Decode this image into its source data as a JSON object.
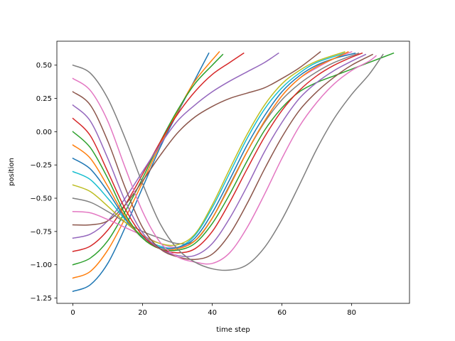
{
  "chart_data": {
    "type": "line",
    "title": "",
    "xlabel": "time step",
    "ylabel": "position",
    "xlim": [
      -4.6,
      96.6
    ],
    "ylim": [
      -1.29,
      0.68
    ],
    "x_ticks": [
      0,
      20,
      40,
      60,
      80
    ],
    "x_tick_labels": [
      "0",
      "20",
      "40",
      "60",
      "80"
    ],
    "y_ticks": [
      -1.25,
      -1.0,
      -0.75,
      -0.5,
      -0.25,
      0.0,
      0.25,
      0.5
    ],
    "y_tick_labels": [
      "−1.25",
      "−1.00",
      "−0.75",
      "−0.50",
      "−0.25",
      "0.00",
      "0.25",
      "0.50"
    ],
    "grid": false,
    "legend": "none",
    "series": [
      {
        "color": "#1f77b4",
        "points": [
          [
            0,
            -1.2
          ],
          [
            5,
            -1.15
          ],
          [
            10,
            -0.99
          ],
          [
            15,
            -0.72
          ],
          [
            20,
            -0.42
          ],
          [
            25,
            -0.12
          ],
          [
            30,
            0.14
          ],
          [
            35,
            0.39
          ],
          [
            39,
            0.59
          ]
        ]
      },
      {
        "color": "#ff7f0e",
        "points": [
          [
            0,
            -1.1
          ],
          [
            5,
            -1.05
          ],
          [
            10,
            -0.89
          ],
          [
            15,
            -0.65
          ],
          [
            20,
            -0.38
          ],
          [
            25,
            -0.1
          ],
          [
            30,
            0.15
          ],
          [
            35,
            0.38
          ],
          [
            42,
            0.6
          ]
        ]
      },
      {
        "color": "#2ca02c",
        "points": [
          [
            0,
            -1.0
          ],
          [
            5,
            -0.95
          ],
          [
            10,
            -0.82
          ],
          [
            15,
            -0.6
          ],
          [
            20,
            -0.35
          ],
          [
            25,
            -0.08
          ],
          [
            30,
            0.16
          ],
          [
            35,
            0.36
          ],
          [
            40,
            0.5
          ],
          [
            43,
            0.58
          ]
        ]
      },
      {
        "color": "#d62728",
        "points": [
          [
            0,
            -0.9
          ],
          [
            5,
            -0.86
          ],
          [
            10,
            -0.74
          ],
          [
            15,
            -0.55
          ],
          [
            20,
            -0.32
          ],
          [
            25,
            -0.08
          ],
          [
            30,
            0.13
          ],
          [
            35,
            0.3
          ],
          [
            40,
            0.43
          ],
          [
            45,
            0.52
          ],
          [
            49,
            0.59
          ]
        ]
      },
      {
        "color": "#9467bd",
        "points": [
          [
            0,
            -0.8
          ],
          [
            5,
            -0.77
          ],
          [
            10,
            -0.67
          ],
          [
            15,
            -0.5
          ],
          [
            20,
            -0.3
          ],
          [
            25,
            -0.1
          ],
          [
            30,
            0.08
          ],
          [
            35,
            0.2
          ],
          [
            40,
            0.3
          ],
          [
            45,
            0.38
          ],
          [
            50,
            0.45
          ],
          [
            55,
            0.52
          ],
          [
            59,
            0.59
          ]
        ]
      },
      {
        "color": "#8c564b",
        "points": [
          [
            0,
            -0.7
          ],
          [
            5,
            -0.7
          ],
          [
            10,
            -0.67
          ],
          [
            15,
            -0.55
          ],
          [
            20,
            -0.37
          ],
          [
            25,
            -0.18
          ],
          [
            30,
            -0.01
          ],
          [
            35,
            0.11
          ],
          [
            40,
            0.19
          ],
          [
            45,
            0.25
          ],
          [
            50,
            0.29
          ],
          [
            55,
            0.33
          ],
          [
            60,
            0.4
          ],
          [
            65,
            0.48
          ],
          [
            71,
            0.6
          ]
        ]
      },
      {
        "color": "#e377c2",
        "points": [
          [
            0,
            -0.6
          ],
          [
            5,
            -0.61
          ],
          [
            10,
            -0.66
          ],
          [
            15,
            -0.72
          ],
          [
            20,
            -0.78
          ],
          [
            25,
            -0.84
          ],
          [
            30,
            -0.87
          ],
          [
            35,
            -0.82
          ],
          [
            40,
            -0.65
          ],
          [
            45,
            -0.4
          ],
          [
            50,
            -0.15
          ],
          [
            55,
            0.08
          ],
          [
            60,
            0.27
          ],
          [
            65,
            0.4
          ],
          [
            70,
            0.48
          ],
          [
            75,
            0.55
          ],
          [
            80,
            0.6
          ]
        ]
      },
      {
        "color": "#7f7f7f",
        "points": [
          [
            0,
            -0.5
          ],
          [
            5,
            -0.53
          ],
          [
            10,
            -0.6
          ],
          [
            15,
            -0.68
          ],
          [
            20,
            -0.75
          ],
          [
            25,
            -0.8
          ],
          [
            30,
            -0.84
          ],
          [
            35,
            -0.82
          ],
          [
            40,
            -0.65
          ],
          [
            45,
            -0.4
          ],
          [
            50,
            -0.15
          ],
          [
            55,
            0.07
          ],
          [
            60,
            0.24
          ],
          [
            65,
            0.36
          ],
          [
            70,
            0.45
          ],
          [
            75,
            0.52
          ],
          [
            82,
            0.59
          ]
        ]
      },
      {
        "color": "#bcbd22",
        "points": [
          [
            0,
            -0.4
          ],
          [
            5,
            -0.45
          ],
          [
            10,
            -0.56
          ],
          [
            15,
            -0.68
          ],
          [
            20,
            -0.78
          ],
          [
            25,
            -0.84
          ],
          [
            30,
            -0.85
          ],
          [
            35,
            -0.77
          ],
          [
            40,
            -0.55
          ],
          [
            45,
            -0.28
          ],
          [
            50,
            -0.02
          ],
          [
            55,
            0.2
          ],
          [
            60,
            0.36
          ],
          [
            65,
            0.46
          ],
          [
            70,
            0.53
          ],
          [
            78,
            0.6
          ]
        ]
      },
      {
        "color": "#17becf",
        "points": [
          [
            0,
            -0.3
          ],
          [
            5,
            -0.36
          ],
          [
            10,
            -0.5
          ],
          [
            15,
            -0.66
          ],
          [
            20,
            -0.79
          ],
          [
            25,
            -0.86
          ],
          [
            30,
            -0.87
          ],
          [
            35,
            -0.78
          ],
          [
            40,
            -0.57
          ],
          [
            45,
            -0.31
          ],
          [
            50,
            -0.05
          ],
          [
            55,
            0.17
          ],
          [
            60,
            0.33
          ],
          [
            65,
            0.44
          ],
          [
            70,
            0.52
          ],
          [
            78,
            0.59
          ]
        ]
      },
      {
        "color": "#1f77b4",
        "points": [
          [
            0,
            -0.2
          ],
          [
            5,
            -0.28
          ],
          [
            10,
            -0.45
          ],
          [
            15,
            -0.65
          ],
          [
            20,
            -0.8
          ],
          [
            25,
            -0.87
          ],
          [
            30,
            -0.87
          ],
          [
            35,
            -0.8
          ],
          [
            40,
            -0.61
          ],
          [
            45,
            -0.36
          ],
          [
            50,
            -0.1
          ],
          [
            55,
            0.12
          ],
          [
            60,
            0.3
          ],
          [
            65,
            0.42
          ],
          [
            70,
            0.5
          ],
          [
            75,
            0.55
          ],
          [
            81,
            0.59
          ]
        ]
      },
      {
        "color": "#ff7f0e",
        "points": [
          [
            0,
            -0.1
          ],
          [
            5,
            -0.2
          ],
          [
            10,
            -0.41
          ],
          [
            15,
            -0.64
          ],
          [
            20,
            -0.8
          ],
          [
            25,
            -0.88
          ],
          [
            30,
            -0.88
          ],
          [
            35,
            -0.82
          ],
          [
            40,
            -0.65
          ],
          [
            45,
            -0.41
          ],
          [
            50,
            -0.15
          ],
          [
            55,
            0.08
          ],
          [
            60,
            0.27
          ],
          [
            65,
            0.4
          ],
          [
            70,
            0.49
          ],
          [
            75,
            0.55
          ],
          [
            79,
            0.6
          ]
        ]
      },
      {
        "color": "#2ca02c",
        "points": [
          [
            0,
            0.0
          ],
          [
            5,
            -0.12
          ],
          [
            10,
            -0.35
          ],
          [
            15,
            -0.62
          ],
          [
            20,
            -0.8
          ],
          [
            25,
            -0.88
          ],
          [
            30,
            -0.89
          ],
          [
            35,
            -0.84
          ],
          [
            40,
            -0.69
          ],
          [
            45,
            -0.47
          ],
          [
            50,
            -0.22
          ],
          [
            55,
            0.01
          ],
          [
            60,
            0.18
          ],
          [
            65,
            0.3
          ],
          [
            70,
            0.37
          ],
          [
            75,
            0.42
          ],
          [
            80,
            0.47
          ],
          [
            85,
            0.52
          ],
          [
            92,
            0.59
          ]
        ]
      },
      {
        "color": "#d62728",
        "points": [
          [
            0,
            0.1
          ],
          [
            5,
            -0.03
          ],
          [
            10,
            -0.3
          ],
          [
            15,
            -0.58
          ],
          [
            20,
            -0.78
          ],
          [
            25,
            -0.88
          ],
          [
            30,
            -0.91
          ],
          [
            35,
            -0.88
          ],
          [
            40,
            -0.75
          ],
          [
            45,
            -0.53
          ],
          [
            50,
            -0.28
          ],
          [
            55,
            -0.04
          ],
          [
            60,
            0.16
          ],
          [
            65,
            0.31
          ],
          [
            70,
            0.42
          ],
          [
            75,
            0.5
          ],
          [
            80,
            0.56
          ],
          [
            83,
            0.59
          ]
        ]
      },
      {
        "color": "#9467bd",
        "points": [
          [
            0,
            0.2
          ],
          [
            5,
            0.08
          ],
          [
            10,
            -0.2
          ],
          [
            15,
            -0.52
          ],
          [
            20,
            -0.76
          ],
          [
            25,
            -0.88
          ],
          [
            30,
            -0.93
          ],
          [
            35,
            -0.93
          ],
          [
            40,
            -0.84
          ],
          [
            45,
            -0.65
          ],
          [
            50,
            -0.41
          ],
          [
            55,
            -0.15
          ],
          [
            60,
            0.07
          ],
          [
            65,
            0.25
          ],
          [
            70,
            0.37
          ],
          [
            75,
            0.46
          ],
          [
            80,
            0.53
          ],
          [
            84,
            0.58
          ]
        ]
      },
      {
        "color": "#8c564b",
        "points": [
          [
            0,
            0.3
          ],
          [
            5,
            0.2
          ],
          [
            10,
            -0.07
          ],
          [
            15,
            -0.42
          ],
          [
            20,
            -0.72
          ],
          [
            25,
            -0.88
          ],
          [
            30,
            -0.94
          ],
          [
            35,
            -0.96
          ],
          [
            40,
            -0.92
          ],
          [
            45,
            -0.77
          ],
          [
            50,
            -0.54
          ],
          [
            55,
            -0.28
          ],
          [
            60,
            -0.04
          ],
          [
            65,
            0.16
          ],
          [
            70,
            0.3
          ],
          [
            75,
            0.41
          ],
          [
            80,
            0.5
          ],
          [
            86,
            0.58
          ]
        ]
      },
      {
        "color": "#e377c2",
        "points": [
          [
            0,
            0.4
          ],
          [
            5,
            0.31
          ],
          [
            10,
            0.08
          ],
          [
            15,
            -0.27
          ],
          [
            20,
            -0.6
          ],
          [
            25,
            -0.83
          ],
          [
            30,
            -0.94
          ],
          [
            35,
            -0.98
          ],
          [
            40,
            -0.99
          ],
          [
            45,
            -0.91
          ],
          [
            50,
            -0.72
          ],
          [
            55,
            -0.47
          ],
          [
            60,
            -0.2
          ],
          [
            65,
            0.04
          ],
          [
            70,
            0.22
          ],
          [
            75,
            0.36
          ],
          [
            80,
            0.46
          ],
          [
            85,
            0.53
          ],
          [
            87,
            0.57
          ]
        ]
      },
      {
        "color": "#7f7f7f",
        "points": [
          [
            0,
            0.5
          ],
          [
            5,
            0.44
          ],
          [
            10,
            0.25
          ],
          [
            15,
            -0.05
          ],
          [
            20,
            -0.39
          ],
          [
            25,
            -0.69
          ],
          [
            30,
            -0.88
          ],
          [
            35,
            -0.98
          ],
          [
            40,
            -1.03
          ],
          [
            45,
            -1.04
          ],
          [
            50,
            -1.0
          ],
          [
            55,
            -0.87
          ],
          [
            60,
            -0.66
          ],
          [
            65,
            -0.4
          ],
          [
            70,
            -0.13
          ],
          [
            75,
            0.1
          ],
          [
            80,
            0.28
          ],
          [
            85,
            0.43
          ],
          [
            89,
            0.58
          ]
        ]
      }
    ]
  }
}
